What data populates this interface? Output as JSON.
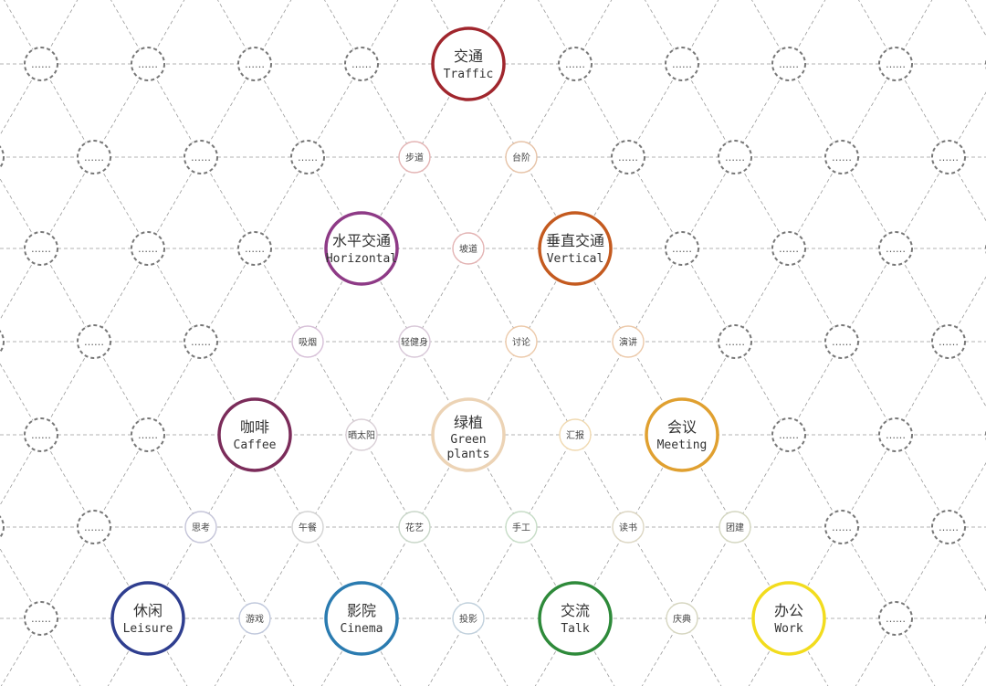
{
  "placeholder_text": "……",
  "main_nodes": [
    {
      "id": "traffic",
      "zh": "交通",
      "en": "Traffic",
      "color": "#a0262d"
    },
    {
      "id": "horizontal",
      "zh": "水平交通",
      "en": "Horizontal",
      "color": "#8e3a86"
    },
    {
      "id": "vertical",
      "zh": "垂直交通",
      "en": "Vertical",
      "color": "#c45a1f"
    },
    {
      "id": "caffee",
      "zh": "咖啡",
      "en": "Caffee",
      "color": "#7b2c5a"
    },
    {
      "id": "green-plants",
      "zh": "绿植",
      "en": "Green plants",
      "color": "#ecd3b5"
    },
    {
      "id": "meeting",
      "zh": "会议",
      "en": "Meeting",
      "color": "#e0a030"
    },
    {
      "id": "leisure",
      "zh": "休闲",
      "en": "Leisure",
      "color": "#2f3e8f"
    },
    {
      "id": "cinema",
      "zh": "影院",
      "en": "Cinema",
      "color": "#2a7bb0"
    },
    {
      "id": "talk",
      "zh": "交流",
      "en": "Talk",
      "color": "#2e8a3a"
    },
    {
      "id": "work",
      "zh": "办公",
      "en": "Work",
      "color": "#f2dc1e"
    }
  ],
  "sub_nodes": [
    {
      "label": "步道",
      "color": "#e3b3b3"
    },
    {
      "label": "台阶",
      "color": "#e6c2a6"
    },
    {
      "label": "坡道",
      "color": "#e3b3b3"
    },
    {
      "label": "吸烟",
      "color": "#d7c0d8"
    },
    {
      "label": "轻健身",
      "color": "#d8c8d8"
    },
    {
      "label": "讨论",
      "color": "#ecc9a9"
    },
    {
      "label": "演讲",
      "color": "#ecc9a9"
    },
    {
      "label": "晒太阳",
      "color": "#d9cfd6"
    },
    {
      "label": "汇报",
      "color": "#f0d9b0"
    },
    {
      "label": "思考",
      "color": "#c4c4d8"
    },
    {
      "label": "午餐",
      "color": "#d3d3d3"
    },
    {
      "label": "花艺",
      "color": "#c8d6c8"
    },
    {
      "label": "手工",
      "color": "#c6dcc6"
    },
    {
      "label": "读书",
      "color": "#dcd6c2"
    },
    {
      "label": "团建",
      "color": "#d3d6c0"
    },
    {
      "label": "游戏",
      "color": "#c0c8dc"
    },
    {
      "label": "投影",
      "color": "#c0d0dc"
    },
    {
      "label": "庆典",
      "color": "#d6d6c0"
    }
  ]
}
